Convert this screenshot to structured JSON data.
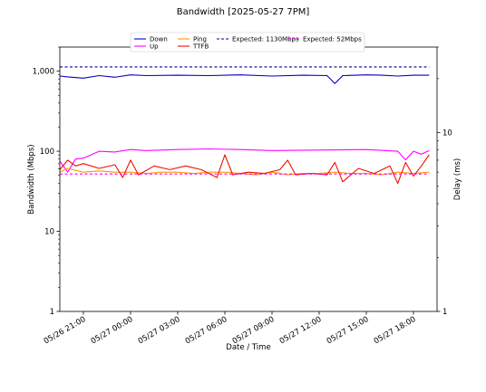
{
  "chart_data": {
    "type": "line",
    "title": "Bandwidth [2025-05-27 7PM]",
    "xlabel": "Date / Time",
    "ylabel": "Bandwidth (Mbps)",
    "y2label": "Delay (ms)",
    "yscale": "log",
    "ylim": [
      1,
      2000
    ],
    "y2scale": "log",
    "y2lim": [
      1,
      30
    ],
    "xlim": [
      "2025-05-26 19:30",
      "2025-05-27 19:30"
    ],
    "x_ticks": [
      "05/26 21:00",
      "05/27 00:00",
      "05/27 03:00",
      "05/27 06:00",
      "05/27 09:00",
      "05/27 12:00",
      "05/27 15:00",
      "05/27 18:00"
    ],
    "y_ticks": [
      "1",
      "10",
      "100",
      "1,000"
    ],
    "y2_ticks": [
      "1",
      "10"
    ],
    "grid": false,
    "legend_position": "top-center",
    "colors": {
      "Down": "#0000cc",
      "Up": "#ff00ff",
      "Ping": "#ff9900",
      "TTFB": "#ee1100",
      "Expected: 1130Mbps": "#000099",
      "Expected: 52Mbps": "#ff00ff"
    },
    "series": [
      {
        "name": "Down",
        "axis": "left",
        "style": "solid",
        "x": [
          "2025-05-26 19:30",
          "2025-05-26 20:00",
          "2025-05-26 21:00",
          "2025-05-26 22:00",
          "2025-05-26 23:00",
          "2025-05-27 00:00",
          "2025-05-27 01:00",
          "2025-05-27 03:00",
          "2025-05-27 05:00",
          "2025-05-27 07:00",
          "2025-05-27 09:00",
          "2025-05-27 11:00",
          "2025-05-27 12:30",
          "2025-05-27 13:00",
          "2025-05-27 13:30",
          "2025-05-27 15:00",
          "2025-05-27 16:00",
          "2025-05-27 17:00",
          "2025-05-27 18:00",
          "2025-05-27 19:00"
        ],
        "y": [
          870,
          850,
          820,
          880,
          840,
          900,
          880,
          890,
          880,
          900,
          870,
          890,
          880,
          700,
          880,
          900,
          890,
          870,
          890,
          890
        ]
      },
      {
        "name": "Up",
        "axis": "left",
        "style": "solid",
        "x": [
          "2025-05-26 19:30",
          "2025-05-26 20:00",
          "2025-05-26 20:30",
          "2025-05-26 21:00",
          "2025-05-26 22:00",
          "2025-05-26 23:00",
          "2025-05-27 00:00",
          "2025-05-27 01:00",
          "2025-05-27 03:00",
          "2025-05-27 05:00",
          "2025-05-27 07:00",
          "2025-05-27 09:00",
          "2025-05-27 11:00",
          "2025-05-27 13:00",
          "2025-05-27 15:00",
          "2025-05-27 17:00",
          "2025-05-27 17:30",
          "2025-05-27 18:00",
          "2025-05-27 18:30",
          "2025-05-27 19:00"
        ],
        "y": [
          75,
          55,
          80,
          82,
          100,
          98,
          105,
          102,
          105,
          107,
          105,
          102,
          103,
          104,
          105,
          100,
          78,
          100,
          92,
          102
        ]
      },
      {
        "name": "Ping",
        "axis": "right",
        "style": "solid",
        "x": [
          "2025-05-26 19:30",
          "2025-05-26 20:00",
          "2025-05-26 21:00",
          "2025-05-26 22:00",
          "2025-05-26 23:00",
          "2025-05-27 00:00",
          "2025-05-27 01:00",
          "2025-05-27 02:00",
          "2025-05-27 03:00",
          "2025-05-27 04:00",
          "2025-05-27 05:00",
          "2025-05-27 06:00",
          "2025-05-27 07:00",
          "2025-05-27 08:00",
          "2025-05-27 09:00",
          "2025-05-27 10:00",
          "2025-05-27 11:00",
          "2025-05-27 12:00",
          "2025-05-27 13:00",
          "2025-05-27 14:00",
          "2025-05-27 15:00",
          "2025-05-27 16:00",
          "2025-05-27 17:00",
          "2025-05-27 18:00",
          "2025-05-27 19:00"
        ],
        "y": [
          6.0,
          6.3,
          6.0,
          6.1,
          6.0,
          6.0,
          5.9,
          6.0,
          6.0,
          5.9,
          6.0,
          6.0,
          5.9,
          5.8,
          6.0,
          5.8,
          5.9,
          5.9,
          6.0,
          5.9,
          5.9,
          5.8,
          6.0,
          5.9,
          6.0
        ]
      },
      {
        "name": "TTFB",
        "axis": "right",
        "style": "solid",
        "x": [
          "2025-05-26 19:30",
          "2025-05-26 20:00",
          "2025-05-26 20:30",
          "2025-05-26 21:00",
          "2025-05-26 22:00",
          "2025-05-26 23:00",
          "2025-05-26 23:30",
          "2025-05-27 00:00",
          "2025-05-27 00:30",
          "2025-05-27 01:30",
          "2025-05-27 02:30",
          "2025-05-27 03:30",
          "2025-05-27 04:30",
          "2025-05-27 05:30",
          "2025-05-27 06:00",
          "2025-05-27 06:30",
          "2025-05-27 07:30",
          "2025-05-27 08:30",
          "2025-05-27 09:30",
          "2025-05-27 10:00",
          "2025-05-27 10:30",
          "2025-05-27 11:30",
          "2025-05-27 12:30",
          "2025-05-27 13:00",
          "2025-05-27 13:30",
          "2025-05-27 14:30",
          "2025-05-27 15:30",
          "2025-05-27 16:30",
          "2025-05-27 17:00",
          "2025-05-27 17:30",
          "2025-05-27 18:00",
          "2025-05-27 18:30",
          "2025-05-27 19:00"
        ],
        "y": [
          6.2,
          7.0,
          6.5,
          6.7,
          6.3,
          6.6,
          5.6,
          7.0,
          5.8,
          6.5,
          6.2,
          6.5,
          6.2,
          5.6,
          7.5,
          5.8,
          6.0,
          5.9,
          6.2,
          7.0,
          5.8,
          5.9,
          5.8,
          6.8,
          5.3,
          6.3,
          5.9,
          6.5,
          5.2,
          6.8,
          5.7,
          6.5,
          7.5
        ]
      },
      {
        "name": "Expected: 1130Mbps",
        "axis": "left",
        "style": "dashed",
        "x": [
          "2025-05-26 19:30",
          "2025-05-27 19:00"
        ],
        "y": [
          1130,
          1130
        ]
      },
      {
        "name": "Expected: 52Mbps",
        "axis": "left",
        "style": "dashed",
        "x": [
          "2025-05-26 19:30",
          "2025-05-27 19:00"
        ],
        "y": [
          52,
          52
        ]
      }
    ]
  }
}
